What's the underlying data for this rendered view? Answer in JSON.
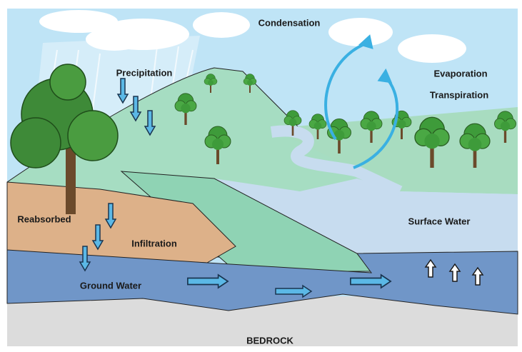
{
  "labels": {
    "condensation": "Condensation",
    "precipitation": "Precipitation",
    "evaporation": "Evaporation",
    "transpiration": "Transpiration",
    "reabsorbed": "Reabsorbed",
    "infiltration": "Infiltration",
    "surface_water": "Surface Water",
    "ground_water": "Ground Water",
    "bedrock": "BEDROCK"
  }
}
